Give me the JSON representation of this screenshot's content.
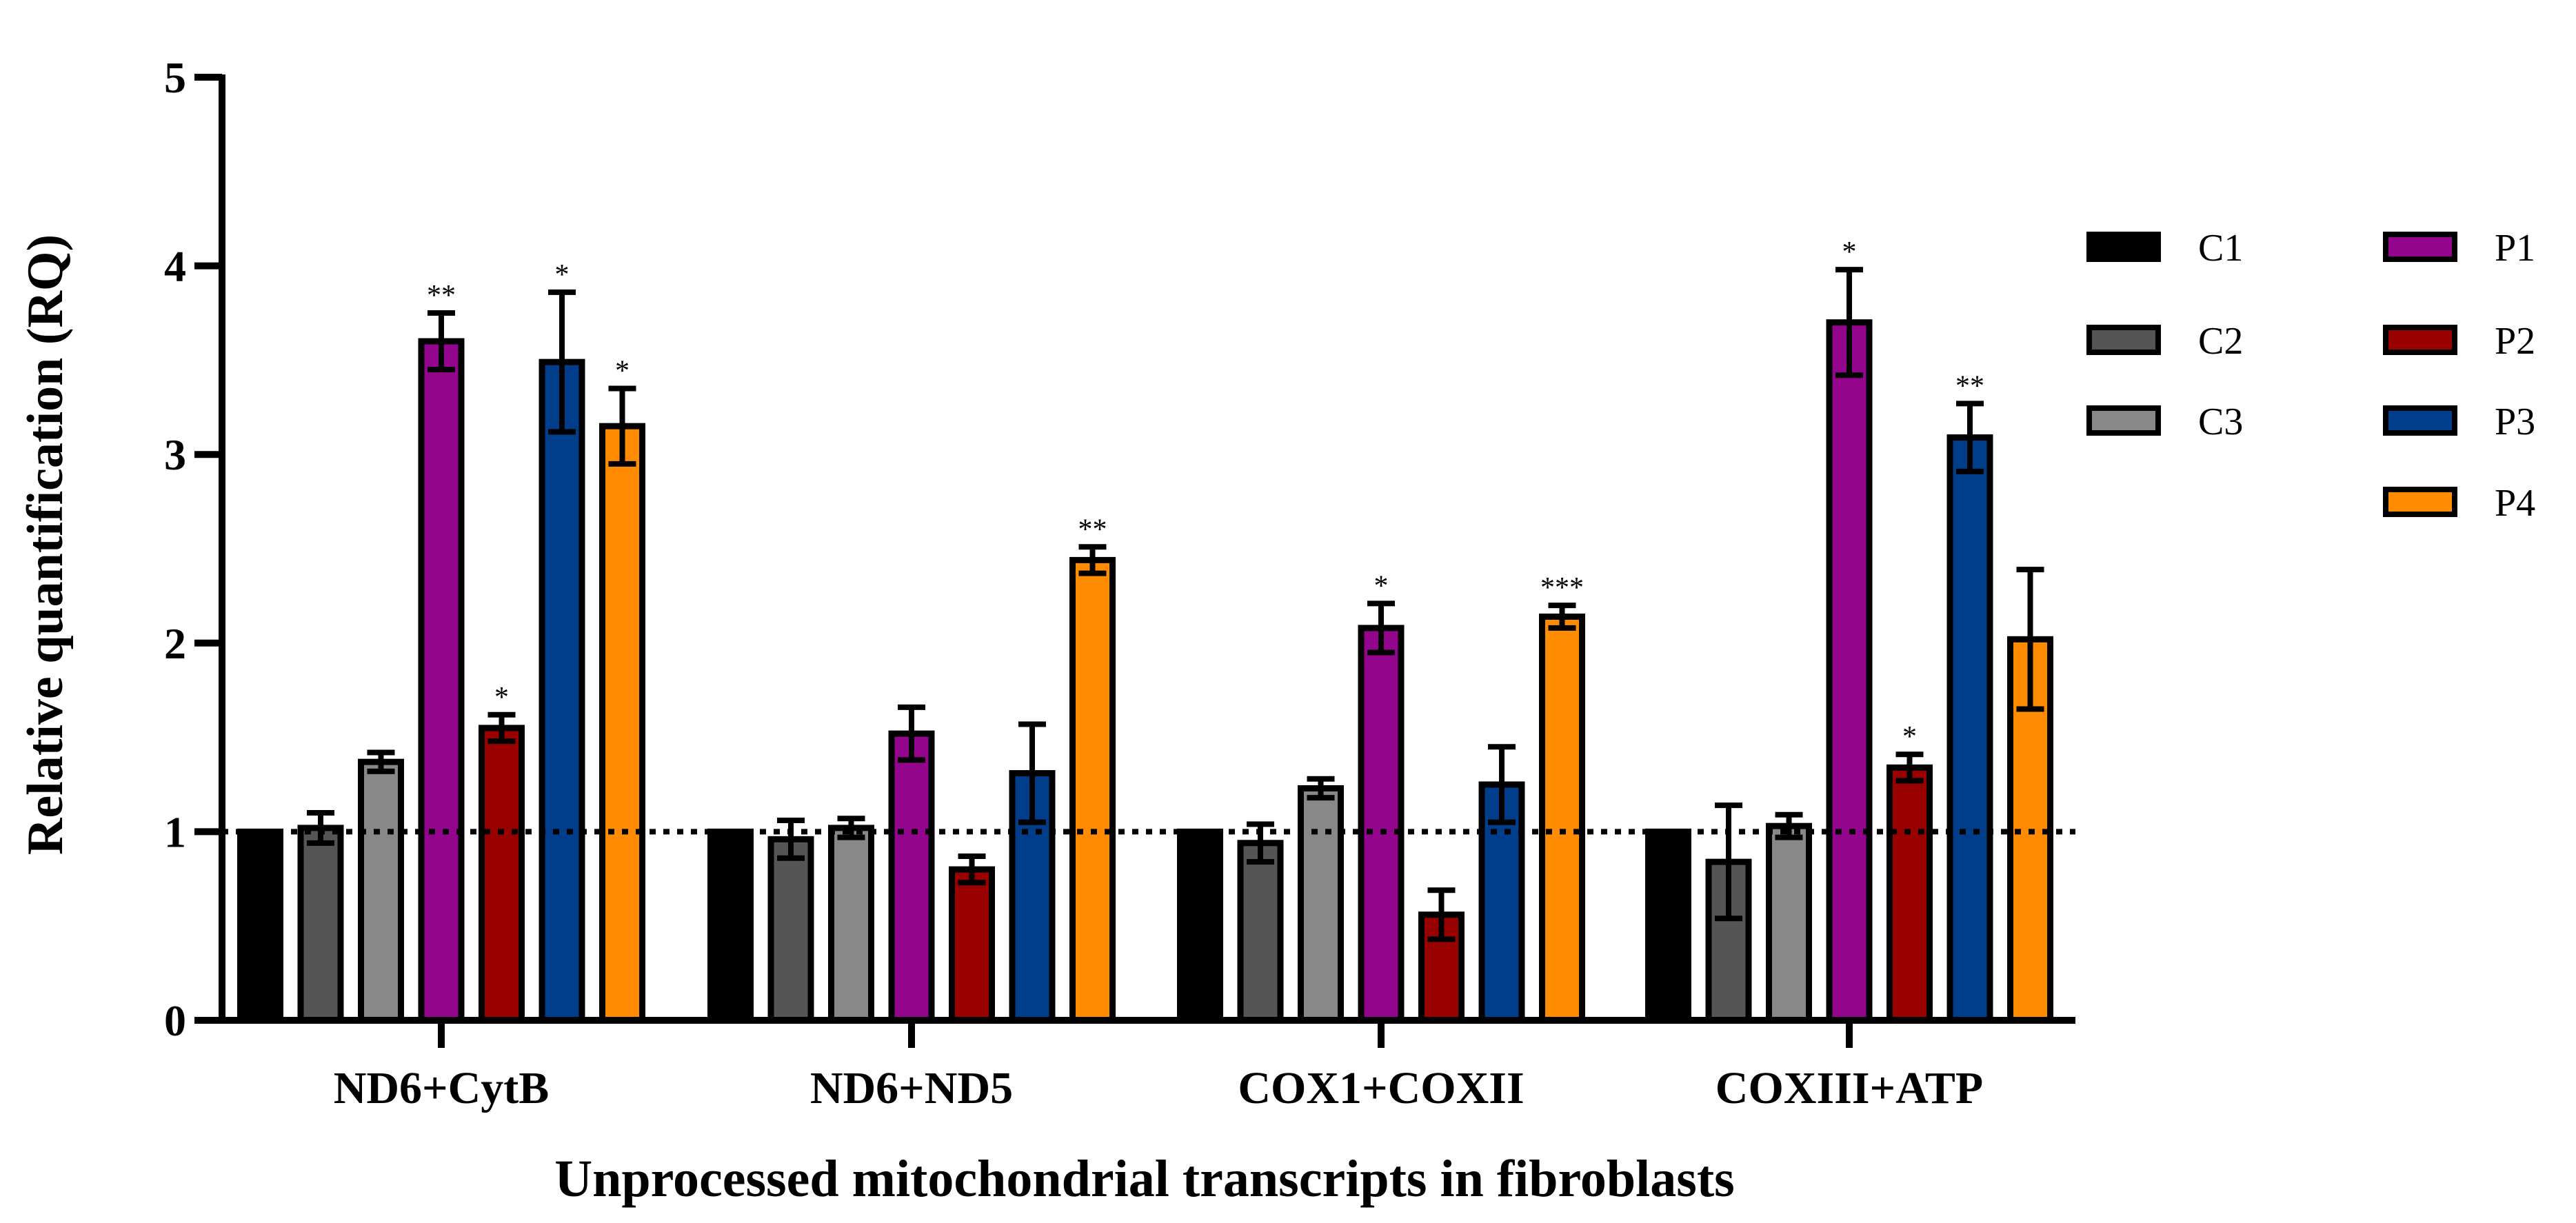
{
  "chart_data": {
    "type": "bar",
    "title": "",
    "xlabel": "Unprocessed mitochondrial  transcripts in fibroblasts",
    "ylabel": "Relative quantification (RQ)",
    "ylim": [
      0,
      5
    ],
    "yticks": [
      "0",
      "1",
      "2",
      "3",
      "4",
      "5"
    ],
    "reference_line": 1,
    "categories": [
      "ND6+CytB",
      "ND6+ND5",
      "COX1+COXII",
      "COXIII+ATP"
    ],
    "legend_position": "right",
    "series": [
      {
        "name": "C1",
        "color": "#000000",
        "values": [
          1.0,
          1.0,
          1.0,
          1.0
        ],
        "errors": [
          0,
          0,
          0,
          0
        ],
        "significance": [
          "",
          "",
          "",
          ""
        ]
      },
      {
        "name": "C2",
        "color": "#555555",
        "values": [
          1.02,
          0.96,
          0.94,
          0.84
        ],
        "errors": [
          0.08,
          0.1,
          0.1,
          0.3
        ],
        "significance": [
          "",
          "",
          "",
          ""
        ]
      },
      {
        "name": "C3",
        "color": "#888888",
        "values": [
          1.37,
          1.02,
          1.23,
          1.03
        ],
        "errors": [
          0.05,
          0.05,
          0.05,
          0.06
        ],
        "significance": [
          "",
          "",
          "",
          ""
        ]
      },
      {
        "name": "P1",
        "color": "#93058D",
        "values": [
          3.6,
          1.52,
          2.08,
          3.7
        ],
        "errors": [
          0.15,
          0.14,
          0.13,
          0.28
        ],
        "significance": [
          "**",
          "",
          "*",
          "*"
        ]
      },
      {
        "name": "P2",
        "color": "#990000",
        "values": [
          1.55,
          0.8,
          0.56,
          1.34
        ],
        "errors": [
          0.07,
          0.07,
          0.13,
          0.07
        ],
        "significance": [
          "*",
          "",
          "",
          "*"
        ]
      },
      {
        "name": "P3",
        "color": "#003D8A",
        "values": [
          3.49,
          1.31,
          1.25,
          3.09
        ],
        "errors": [
          0.37,
          0.26,
          0.2,
          0.18
        ],
        "significance": [
          "*",
          "",
          "",
          "**"
        ]
      },
      {
        "name": "P4",
        "color": "#FF8C00",
        "values": [
          3.15,
          2.44,
          2.14,
          2.02
        ],
        "errors": [
          0.2,
          0.07,
          0.06,
          0.37
        ],
        "significance": [
          "*",
          "**",
          "***",
          ""
        ]
      }
    ]
  }
}
